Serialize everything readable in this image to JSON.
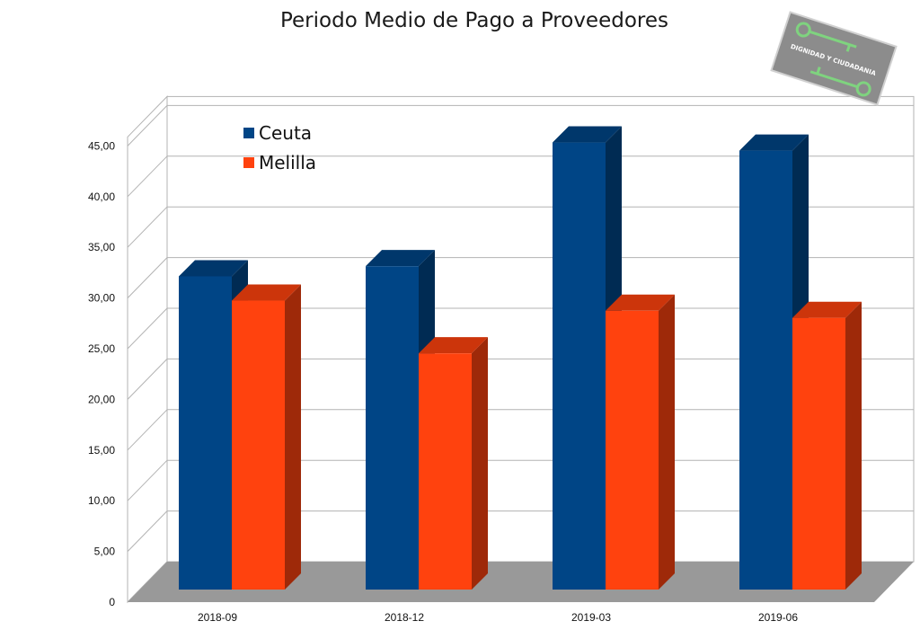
{
  "chart_data": {
    "type": "bar",
    "title": "Periodo Medio de Pago a Proveedores",
    "categories": [
      "2018-09",
      "2018-12",
      "2019-03",
      "2019-06"
    ],
    "series": [
      {
        "name": "Ceuta",
        "values": [
          30.9,
          31.9,
          44.1,
          43.3
        ],
        "color": "#004586"
      },
      {
        "name": "Melilla",
        "values": [
          28.5,
          23.3,
          27.5,
          26.8
        ],
        "color": "#ff420e"
      }
    ],
    "ylim": [
      0,
      45
    ],
    "yticks": [
      "0",
      "5,00",
      "10,00",
      "15,00",
      "20,00",
      "25,00",
      "30,00",
      "35,00",
      "40,00",
      "45,00"
    ],
    "xlabel": "",
    "ylabel": "",
    "grid": true,
    "legend_position": "top-left",
    "style": "3d-bar"
  },
  "watermark": {
    "text": "DIGNIDAD Y CIUDADANIA",
    "icon": "keys-icon"
  }
}
